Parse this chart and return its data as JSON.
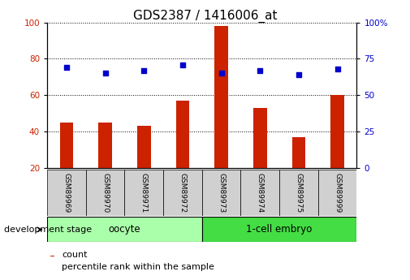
{
  "title": "GDS2387 / 1416006_at",
  "samples": [
    "GSM89969",
    "GSM89970",
    "GSM89971",
    "GSM89972",
    "GSM89973",
    "GSM89974",
    "GSM89975",
    "GSM89999"
  ],
  "counts": [
    45,
    45,
    43,
    57,
    98,
    53,
    37,
    60
  ],
  "percentiles": [
    69,
    65,
    67,
    71,
    65,
    67,
    64,
    68
  ],
  "groups": [
    {
      "label": "oocyte",
      "indices": [
        0,
        1,
        2,
        3
      ]
    },
    {
      "label": "1-cell embryo",
      "indices": [
        4,
        5,
        6,
        7
      ]
    }
  ],
  "group_label": "development stage",
  "ylim_left": [
    20,
    100
  ],
  "ylim_right": [
    0,
    100
  ],
  "yticks_left": [
    20,
    40,
    60,
    80,
    100
  ],
  "yticks_right": [
    0,
    25,
    50,
    75,
    100
  ],
  "yticklabels_right": [
    "0",
    "25",
    "50",
    "75",
    "100%"
  ],
  "bar_color": "#CC2200",
  "dot_color": "#0000CC",
  "background_color": "#ffffff",
  "bar_width": 0.35,
  "title_fontsize": 11,
  "tick_fontsize": 7.5,
  "legend_fontsize": 8,
  "label_area_color": "#d0d0d0",
  "oocyte_color": "#aaffaa",
  "embryo_color": "#44dd44"
}
